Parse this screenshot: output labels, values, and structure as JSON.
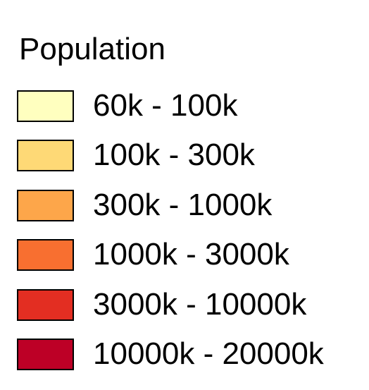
{
  "legend": {
    "title": "Population",
    "items": [
      {
        "label": "60k - 100k",
        "color": "#ffffbf"
      },
      {
        "label": "100k - 300k",
        "color": "#fed976"
      },
      {
        "label": "300k - 1000k",
        "color": "#fda64a"
      },
      {
        "label": "1000k - 3000k",
        "color": "#f86f30"
      },
      {
        "label": "3000k - 10000k",
        "color": "#e32e22"
      },
      {
        "label": "10000k - 20000k",
        "color": "#bd0026"
      }
    ]
  }
}
